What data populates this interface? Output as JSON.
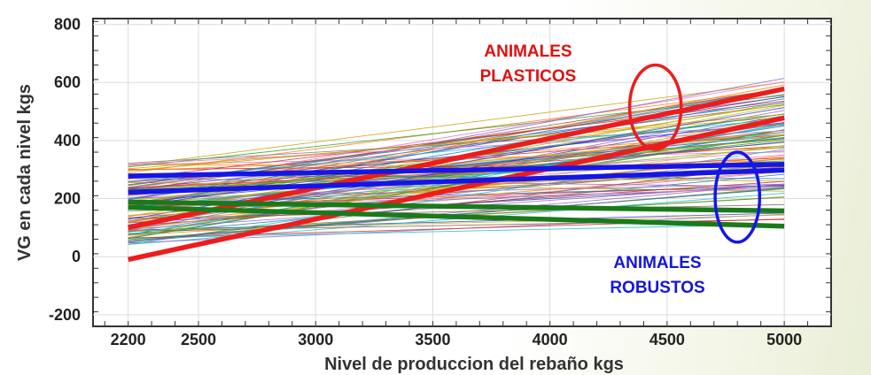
{
  "chart_data": {
    "type": "line",
    "xlabel": "Nivel de produccion del rebaño kgs",
    "ylabel": "VG en cada nivel kgs",
    "xlim": [
      2050,
      5200
    ],
    "ylim": [
      -240,
      820
    ],
    "x_ticks": [
      2200,
      2500,
      3000,
      3500,
      4000,
      4500,
      5000
    ],
    "y_ticks": [
      -200,
      0,
      200,
      400,
      600,
      800
    ],
    "grid": true,
    "highlighted_series": [
      {
        "group": "plasticos",
        "color": "#ee1c1c",
        "x": [
          2200,
          5000
        ],
        "y": [
          100,
          578
        ]
      },
      {
        "group": "plasticos",
        "color": "#ee1c1c",
        "x": [
          2200,
          5000
        ],
        "y": [
          -10,
          478
        ]
      },
      {
        "group": "robustos",
        "color": "#1515e8",
        "x": [
          2200,
          5000
        ],
        "y": [
          278,
          318
        ]
      },
      {
        "group": "robustos",
        "color": "#1515e8",
        "x": [
          2200,
          5000
        ],
        "y": [
          222,
          298
        ]
      },
      {
        "group": "robustos",
        "color": "#1a7a1a",
        "x": [
          2200,
          5000
        ],
        "y": [
          188,
          158
        ]
      },
      {
        "group": "robustos",
        "color": "#1a7a1a",
        "x": [
          2200,
          5000
        ],
        "y": [
          170,
          105
        ]
      }
    ],
    "background_series": {
      "count": 110,
      "x": [
        2200,
        5000
      ],
      "y_start_range": [
        40,
        330
      ],
      "y_end_range": [
        110,
        715
      ],
      "colors": [
        "#1f77b4",
        "#ff7f0e",
        "#2ca02c",
        "#d62728",
        "#9467bd",
        "#8c564b",
        "#e377c2",
        "#7f7f7f",
        "#bcbd22",
        "#17becf",
        "#3d3dd1",
        "#c8a000"
      ]
    },
    "annotations": [
      {
        "text": "ANIMALES",
        "color": "#e01010"
      },
      {
        "text": "PLASTICOS",
        "color": "#e01010"
      },
      {
        "text": "ANIMALES",
        "color": "#1515d8"
      },
      {
        "text": "ROBUSTOS",
        "color": "#1515d8"
      }
    ],
    "ellipses": [
      {
        "color": "#ee1c1c",
        "cx": 4450,
        "cy": 515,
        "rx": 110,
        "ry": 145
      },
      {
        "color": "#1515e8",
        "cx": 4800,
        "cy": 205,
        "rx": 95,
        "ry": 155
      }
    ]
  }
}
